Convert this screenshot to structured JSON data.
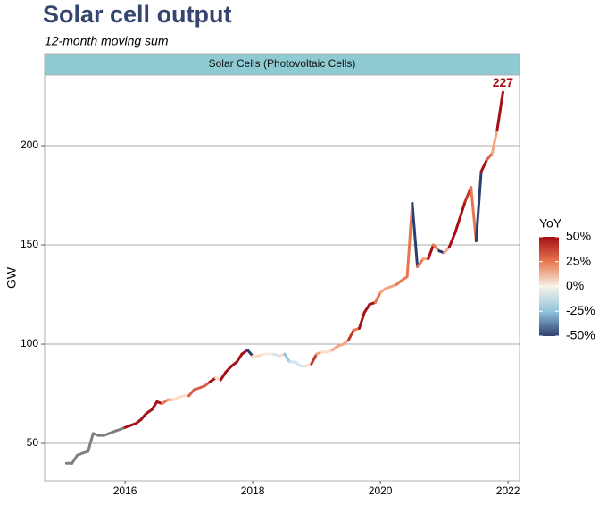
{
  "chart_data": {
    "type": "line",
    "title": "Solar cell output",
    "subtitle": "12-month moving sum",
    "facet": "Solar Cells (Photovoltaic Cells)",
    "y_label": "GW",
    "annotation": {
      "text": "227",
      "color": "#a50f15"
    },
    "x": [
      2015.08,
      2015.17,
      2015.25,
      2015.33,
      2015.42,
      2015.5,
      2015.58,
      2015.67,
      2015.75,
      2015.83,
      2015.92,
      2016,
      2016.08,
      2016.17,
      2016.25,
      2016.33,
      2016.42,
      2016.5,
      2016.58,
      2016.67,
      2016.75,
      2016.83,
      2016.92,
      2017,
      2017.08,
      2017.17,
      2017.25,
      2017.33,
      2017.42,
      2017.5,
      2017.58,
      2017.67,
      2017.75,
      2017.83,
      2017.92,
      2018,
      2018.08,
      2018.17,
      2018.25,
      2018.33,
      2018.42,
      2018.5,
      2018.58,
      2018.67,
      2018.75,
      2018.83,
      2018.92,
      2019,
      2019.08,
      2019.17,
      2019.25,
      2019.33,
      2019.42,
      2019.5,
      2019.58,
      2019.67,
      2019.75,
      2019.83,
      2019.92,
      2020,
      2020.08,
      2020.17,
      2020.25,
      2020.33,
      2020.42,
      2020.5,
      2020.58,
      2020.67,
      2020.75,
      2020.83,
      2020.92,
      2021,
      2021.08,
      2021.17,
      2021.25,
      2021.33,
      2021.42,
      2021.5,
      2021.58,
      2021.67,
      2021.75,
      2021.83,
      2021.92
    ],
    "values": [
      40,
      40,
      44,
      45,
      46,
      55,
      54,
      54,
      55,
      56,
      57,
      58,
      59,
      60,
      62,
      65,
      67,
      71,
      70,
      72,
      72,
      73,
      74,
      74,
      77,
      78,
      79,
      81,
      83,
      82,
      86,
      89,
      91,
      95,
      97,
      94,
      94,
      95,
      95,
      95,
      94,
      95,
      91,
      91,
      89,
      89,
      90,
      95,
      96,
      96,
      97,
      99,
      100,
      102,
      107,
      108,
      116,
      120,
      121,
      126,
      128,
      129,
      130,
      132,
      134,
      171,
      139,
      143,
      143,
      150,
      147,
      146,
      149,
      156,
      164,
      172,
      179,
      152,
      187,
      193,
      196,
      208,
      227
    ],
    "colors": [
      "#808080",
      "#808080",
      "#808080",
      "#808080",
      "#808080",
      "#808080",
      "#808080",
      "#808080",
      "#808080",
      "#808080",
      "#808080",
      "#808080",
      "#a50f15",
      "#a50f15",
      "#a50f15",
      "#a50f15",
      "#a50f15",
      "#a50f15",
      "#a50f15",
      "#e8774f",
      "#f4a582",
      "#fddbc7",
      "#fddbc7",
      "#fddbc7",
      "#d6604d",
      "#d6604d",
      "#d6604d",
      "#d6604d",
      "#a50f15",
      "#fddbc7",
      "#a50f15",
      "#a50f15",
      "#a50f15",
      "#a50f15",
      "#a50f15",
      "#2d3e6e",
      "#fddbc7",
      "#fddbc7",
      "#f7ebe0",
      "#f7ebe0",
      "#d1e5f0",
      "#fddbc7",
      "#92c5de",
      "#d1e5f0",
      "#d1e5f0",
      "#d1e5f0",
      "#fddbc7",
      "#c0392b",
      "#f4a582",
      "#fddbc7",
      "#fddbc7",
      "#f4a582",
      "#f4a582",
      "#f4a582",
      "#c0392b",
      "#e8774f",
      "#a50f15",
      "#a50f15",
      "#a50f15",
      "#e8774f",
      "#f4a582",
      "#f4a582",
      "#f4a582",
      "#e8774f",
      "#e8774f",
      "#e8774f",
      "#2d3e6e",
      "#e8774f",
      "#f4a582",
      "#a50f15",
      "#e8774f",
      "#2d3e6e",
      "#f4a582",
      "#a50f15",
      "#a50f15",
      "#a50f15",
      "#c0392b",
      "#e8774f",
      "#2d3e6e",
      "#a50f15",
      "#d6604d",
      "#f4a582",
      "#a50f15"
    ],
    "xlim": [
      2014.74,
      2022.18
    ],
    "xticks": [
      2016,
      2018,
      2020,
      2022
    ],
    "ylim": [
      31.1,
      235.6
    ],
    "yticks": [
      50,
      100,
      150,
      200
    ],
    "grid": true,
    "colorbar": {
      "title": "YoY",
      "lim": [
        -50,
        50
      ],
      "colors": [
        "#2d3e6e",
        "#92c5de",
        "#f7f2e6",
        "#e8774f",
        "#a50f15"
      ],
      "ticks": [
        {
          "value": 50,
          "label": "50%"
        },
        {
          "value": 25,
          "label": "25%"
        },
        {
          "value": 0,
          "label": "0%"
        },
        {
          "value": -25,
          "label": "-25%"
        },
        {
          "value": -50,
          "label": "-50%"
        }
      ]
    }
  }
}
